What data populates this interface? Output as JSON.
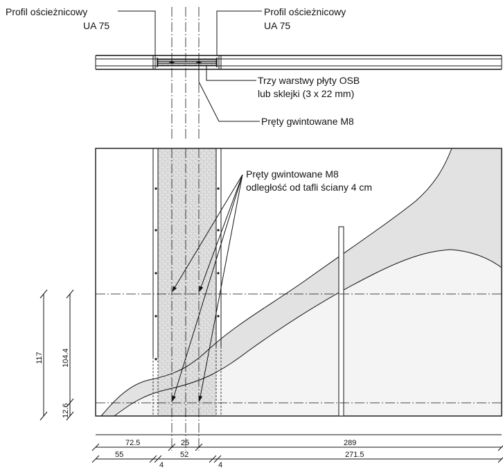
{
  "labels": {
    "profile_left": {
      "line1": "Profil ościeżnicowy",
      "line2": "UA 75"
    },
    "profile_right": {
      "line1": "Profil ościeżnicowy",
      "line2": "UA 75"
    },
    "osb": {
      "line1": "Trzy warstwy płyty OSB",
      "line2": "lub sklejki (3 x 22 mm)"
    },
    "rods_top": "Pręty gwintowane M8",
    "rods_elev": {
      "line1": "Pręty gwintowane M8",
      "line2": "odległość od tafli ściany 4 cm"
    }
  },
  "dimensions": {
    "vertical": {
      "total": "117",
      "upper": "104.4",
      "lower": "12.6"
    },
    "row1": {
      "left": "72.5",
      "middle": "25",
      "right": "289"
    },
    "row2": {
      "left": "55",
      "middle": "52",
      "right": "271.5"
    },
    "small": {
      "a": "4",
      "b": "4"
    }
  }
}
